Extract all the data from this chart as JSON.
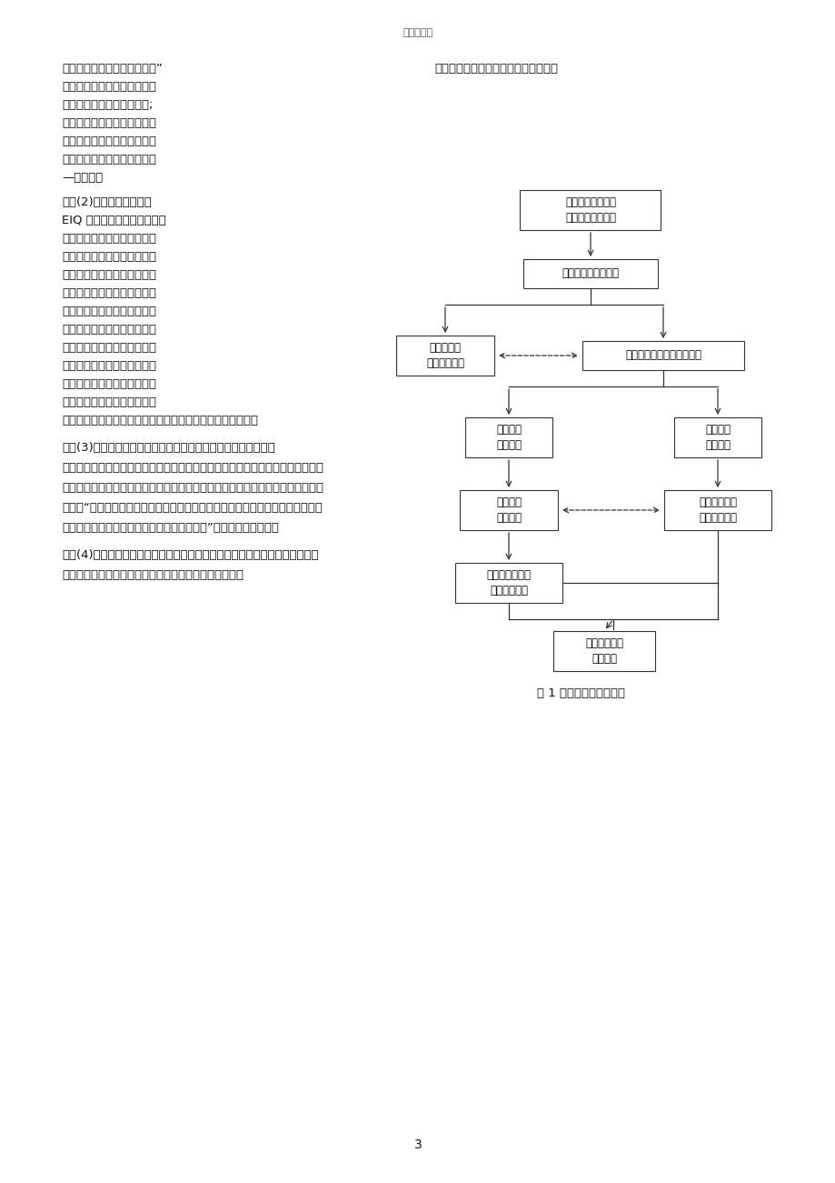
{
  "background_color": "#ffffff",
  "page_title": "精品资料推",
  "page_number": "3",
  "diagram_caption": "图 1 研究的技术思想脉络"
}
